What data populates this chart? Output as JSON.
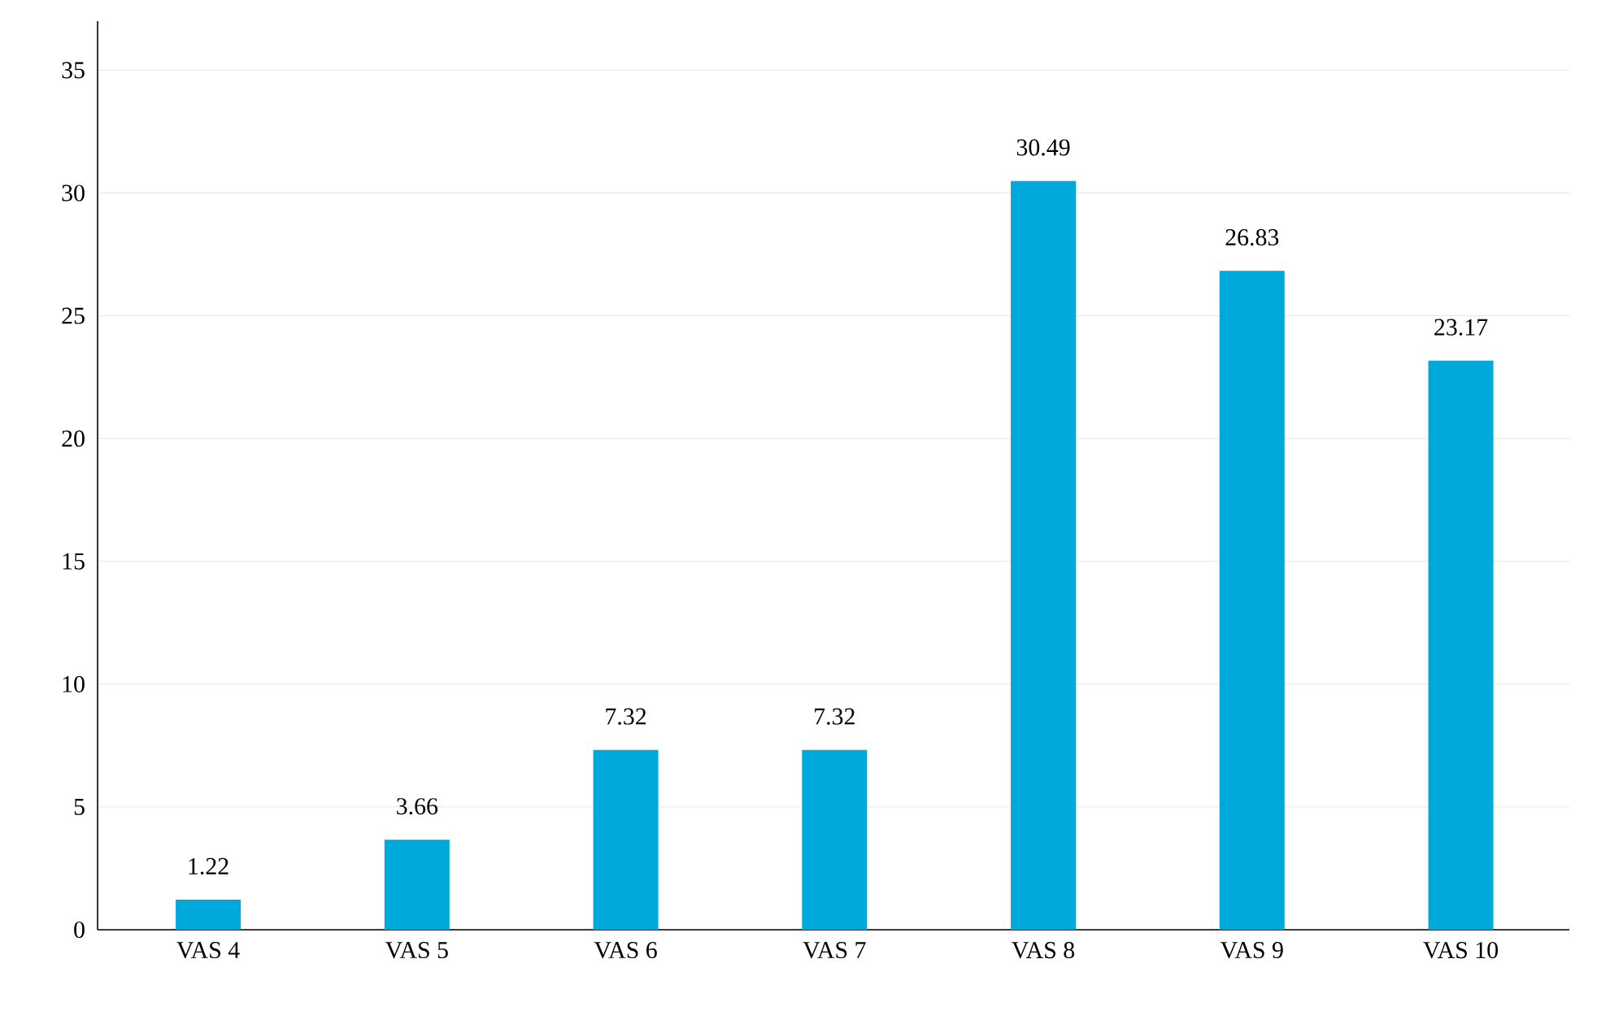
{
  "chart_data": {
    "type": "bar",
    "categories": [
      "VAS 4",
      "VAS 5",
      "VAS 6",
      "VAS 7",
      "VAS 8",
      "VAS 9",
      "VAS 10"
    ],
    "values": [
      1.22,
      3.66,
      7.32,
      7.32,
      30.49,
      26.83,
      23.17
    ],
    "color": "#00a9db",
    "ylim": [
      0,
      37
    ],
    "yticks": [
      0,
      5,
      10,
      15,
      20,
      25,
      30,
      35
    ],
    "grid": "y",
    "data_labels": true
  }
}
